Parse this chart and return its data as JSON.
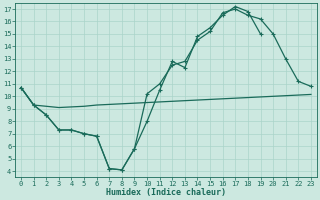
{
  "xlabel": "Humidex (Indice chaleur)",
  "bg_color": "#cce8e0",
  "line_color": "#1a6b5a",
  "grid_color": "#aad4ca",
  "xlim": [
    -0.5,
    23.5
  ],
  "ylim": [
    3.5,
    17.5
  ],
  "xticks": [
    0,
    1,
    2,
    3,
    4,
    5,
    6,
    7,
    8,
    9,
    10,
    11,
    12,
    13,
    14,
    15,
    16,
    17,
    18,
    19,
    20,
    21,
    22,
    23
  ],
  "yticks": [
    4,
    5,
    6,
    7,
    8,
    9,
    10,
    11,
    12,
    13,
    14,
    15,
    16,
    17
  ],
  "curve1_x": [
    0,
    1,
    2,
    3,
    4,
    5,
    6,
    7,
    8,
    9,
    10,
    11,
    12,
    13,
    14,
    15,
    16,
    17,
    18,
    19
  ],
  "curve1_y": [
    10.7,
    9.3,
    8.5,
    7.3,
    7.3,
    7.0,
    6.8,
    4.2,
    4.1,
    5.8,
    8.0,
    10.5,
    12.8,
    12.3,
    14.8,
    15.5,
    16.5,
    17.2,
    16.8,
    15.0
  ],
  "curve2_x": [
    0,
    1,
    2,
    3,
    4,
    5,
    6,
    7,
    8,
    9,
    10,
    11,
    12,
    13,
    14,
    15,
    16,
    17,
    18,
    19,
    20,
    21,
    22,
    23
  ],
  "curve2_y": [
    10.7,
    9.3,
    8.5,
    7.3,
    7.3,
    7.0,
    6.8,
    4.2,
    4.1,
    5.8,
    10.2,
    11.0,
    12.5,
    12.8,
    14.5,
    15.2,
    16.7,
    17.0,
    16.5,
    16.2,
    15.0,
    13.0,
    11.2,
    10.8
  ],
  "curve3_x": [
    0,
    1,
    2,
    3,
    4,
    5,
    6,
    7,
    8,
    9,
    10,
    11,
    12,
    13,
    14,
    15,
    16,
    17,
    18,
    19,
    20,
    21,
    22,
    23
  ],
  "curve3_y": [
    10.7,
    9.3,
    9.2,
    9.1,
    9.15,
    9.2,
    9.3,
    9.35,
    9.4,
    9.45,
    9.5,
    9.55,
    9.6,
    9.65,
    9.7,
    9.75,
    9.8,
    9.85,
    9.9,
    9.95,
    10.0,
    10.05,
    10.1,
    10.15
  ],
  "tick_fontsize": 5.0,
  "xlabel_fontsize": 6.0,
  "linewidth": 0.9,
  "markersize": 3.5
}
